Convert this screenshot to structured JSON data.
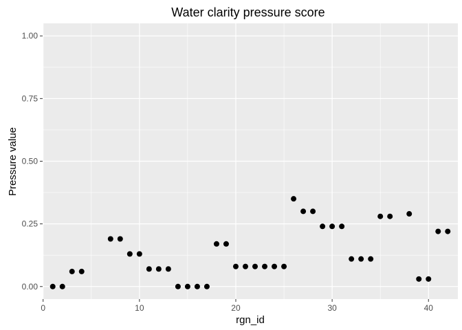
{
  "chart_data": {
    "type": "scatter",
    "title": "Water clarity pressure score",
    "xlabel": "rgn_id",
    "ylabel": "Pressure value",
    "xlim": [
      -0.05,
      43.05
    ],
    "ylim": [
      -0.05,
      1.05
    ],
    "xticks": [
      0,
      10,
      20,
      30,
      40
    ],
    "xtick_labels": [
      "0",
      "10",
      "20",
      "30",
      "40"
    ],
    "yticks": [
      0,
      0.25,
      0.5,
      0.75,
      1.0
    ],
    "ytick_labels": [
      "0.00",
      "0.25",
      "0.50",
      "0.75",
      "1.00"
    ],
    "grid": true,
    "legend": "none",
    "point_color": "#000000",
    "panel_color": "#ebebeb",
    "grid_color": "#ffffff",
    "points": [
      {
        "x": 1,
        "y": 0.0
      },
      {
        "x": 2,
        "y": 0.0
      },
      {
        "x": 3,
        "y": 0.06
      },
      {
        "x": 4,
        "y": 0.06
      },
      {
        "x": 7,
        "y": 0.19
      },
      {
        "x": 8,
        "y": 0.19
      },
      {
        "x": 9,
        "y": 0.13
      },
      {
        "x": 10,
        "y": 0.13
      },
      {
        "x": 11,
        "y": 0.07
      },
      {
        "x": 12,
        "y": 0.07
      },
      {
        "x": 13,
        "y": 0.07
      },
      {
        "x": 14,
        "y": 0.0
      },
      {
        "x": 15,
        "y": 0.0
      },
      {
        "x": 16,
        "y": 0.0
      },
      {
        "x": 17,
        "y": 0.0
      },
      {
        "x": 18,
        "y": 0.17
      },
      {
        "x": 19,
        "y": 0.17
      },
      {
        "x": 20,
        "y": 0.08
      },
      {
        "x": 21,
        "y": 0.08
      },
      {
        "x": 22,
        "y": 0.08
      },
      {
        "x": 23,
        "y": 0.08
      },
      {
        "x": 24,
        "y": 0.08
      },
      {
        "x": 25,
        "y": 0.08
      },
      {
        "x": 26,
        "y": 0.35
      },
      {
        "x": 27,
        "y": 0.3
      },
      {
        "x": 28,
        "y": 0.3
      },
      {
        "x": 29,
        "y": 0.24
      },
      {
        "x": 30,
        "y": 0.24
      },
      {
        "x": 31,
        "y": 0.24
      },
      {
        "x": 32,
        "y": 0.11
      },
      {
        "x": 33,
        "y": 0.11
      },
      {
        "x": 34,
        "y": 0.11
      },
      {
        "x": 35,
        "y": 0.28
      },
      {
        "x": 36,
        "y": 0.28
      },
      {
        "x": 38,
        "y": 0.29
      },
      {
        "x": 39,
        "y": 0.03
      },
      {
        "x": 40,
        "y": 0.03
      },
      {
        "x": 41,
        "y": 0.22
      },
      {
        "x": 42,
        "y": 0.22
      }
    ]
  }
}
